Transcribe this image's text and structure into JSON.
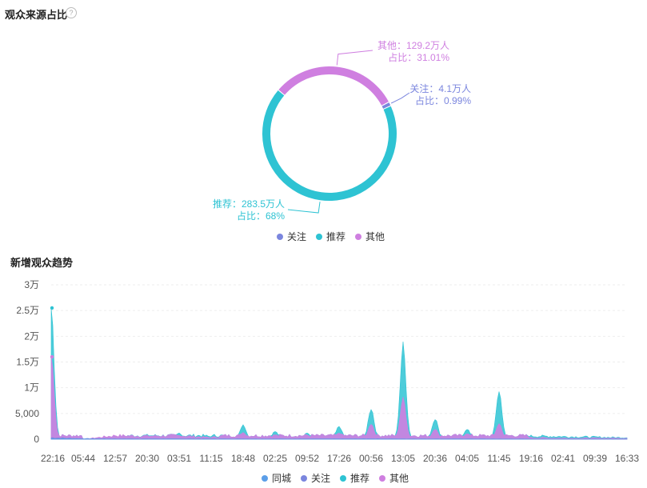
{
  "donut": {
    "title": "观众来源占比",
    "help_icon": "question-icon",
    "chart_data": {
      "type": "pie",
      "variant": "donut",
      "slices": [
        {
          "name": "关注",
          "value": 4.1,
          "unit": "万人",
          "percent": 0.99,
          "label_line1": "关注：4.1万人",
          "label_line2": "占比：0.99%",
          "color": "#7b86de"
        },
        {
          "name": "推荐",
          "value": 283.5,
          "unit": "万人",
          "percent": 68,
          "label_line1": "推荐：283.5万人",
          "label_line2": "占比：68%",
          "color": "#2ec3d3"
        },
        {
          "name": "其他",
          "value": 129.2,
          "unit": "万人",
          "percent": 31.01,
          "label_line1": "其他：129.2万人",
          "label_line2": "占比：31.01%",
          "color": "#cf7fe0"
        }
      ],
      "legend": [
        "关注",
        "推荐",
        "其他"
      ],
      "legend_position": "bottom"
    }
  },
  "trend": {
    "title": "新增观众趋势",
    "chart_data": {
      "type": "area",
      "y_ticks": [
        "0",
        "5,000",
        "1万",
        "1.5万",
        "2万",
        "2.5万",
        "3万"
      ],
      "y_tick_values": [
        0,
        5000,
        10000,
        15000,
        20000,
        25000,
        30000
      ],
      "ylim": [
        0,
        30000
      ],
      "x_ticks": [
        "22:16",
        "05:44",
        "12:57",
        "20:30",
        "03:51",
        "11:15",
        "18:48",
        "02:25",
        "09:52",
        "17:26",
        "00:56",
        "13:05",
        "20:36",
        "04:05",
        "11:45",
        "19:16",
        "02:41",
        "09:39",
        "16:33"
      ],
      "grid": true,
      "legend_position": "bottom",
      "series": [
        {
          "name": "同城",
          "color": "#5b9ee8",
          "values": [
            100,
            50,
            20,
            30,
            40,
            30,
            20,
            30,
            20,
            20,
            30,
            20,
            20,
            30,
            20,
            20,
            10,
            10,
            10
          ]
        },
        {
          "name": "关注",
          "color": "#7b86de",
          "values": [
            300,
            100,
            60,
            60,
            60,
            60,
            60,
            50,
            60,
            60,
            80,
            60,
            60,
            60,
            40,
            40,
            30,
            30,
            30
          ]
        },
        {
          "name": "推荐",
          "color": "#2ec3d3",
          "values": [
            25500,
            0,
            600,
            800,
            1200,
            500,
            2800,
            1500,
            1200,
            2500,
            6000,
            18000,
            4000,
            2000,
            9200,
            600,
            500,
            400,
            300
          ]
        },
        {
          "name": "其他",
          "color": "#cf7fe0",
          "values": [
            16000,
            0,
            700,
            600,
            700,
            300,
            1300,
            800,
            800,
            1200,
            3000,
            7800,
            2000,
            1100,
            3000,
            300,
            200,
            200,
            200
          ]
        }
      ]
    }
  }
}
